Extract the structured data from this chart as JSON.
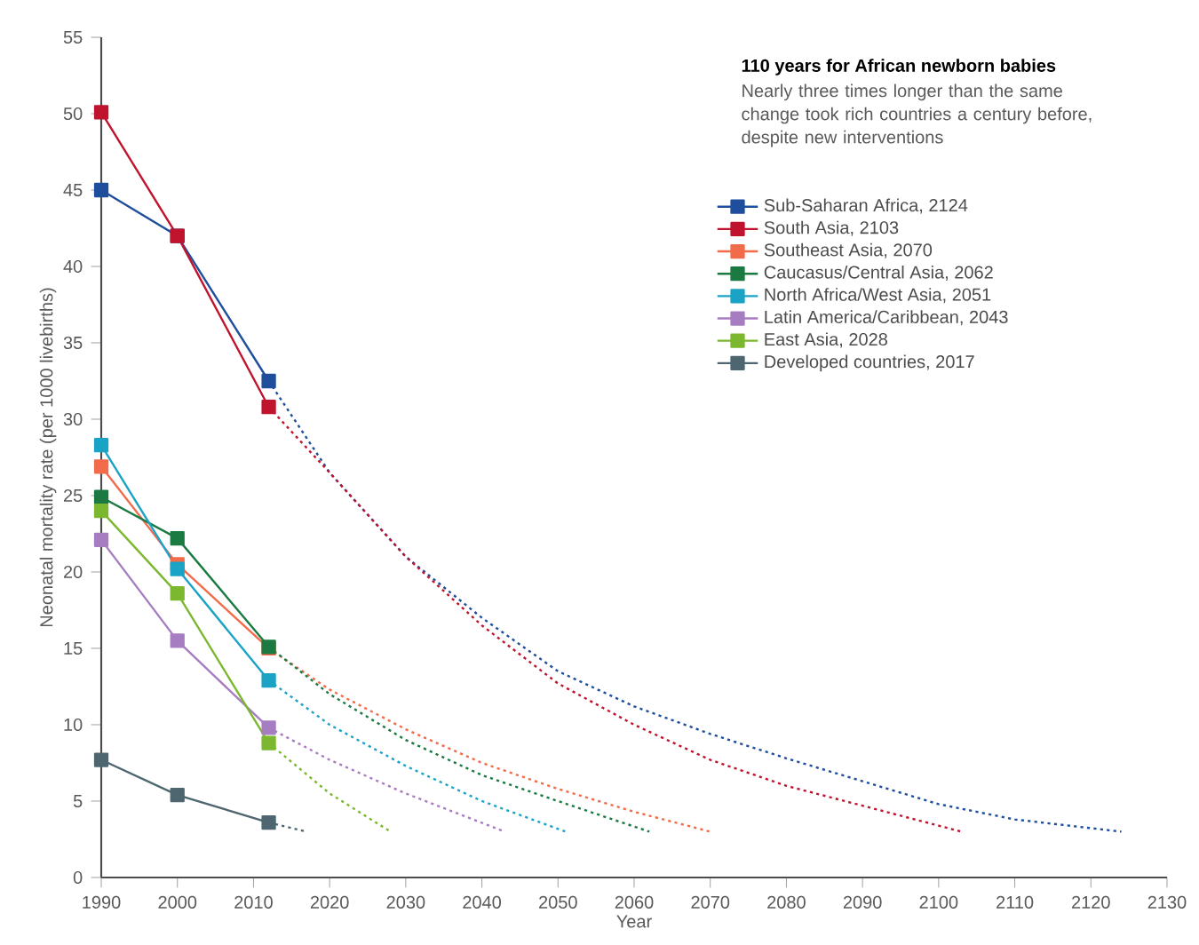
{
  "chart_data": {
    "type": "line",
    "title": "110 years for African newborn babies",
    "subtitle": "Nearly three times longer than the same change took rich countries a century before, despite new interventions",
    "xlabel": "Year",
    "ylabel": "Neonatal mortality rate (per 1000 livebirths)",
    "xlim": [
      1990,
      2130
    ],
    "xticks": [
      1990,
      2000,
      2010,
      2020,
      2030,
      2040,
      2050,
      2060,
      2070,
      2080,
      2090,
      2100,
      2110,
      2120,
      2130
    ],
    "ylim": [
      0,
      55
    ],
    "yticks": [
      0,
      5,
      10,
      15,
      20,
      25,
      30,
      35,
      40,
      45,
      50,
      55
    ],
    "grid": false,
    "legend": "top right",
    "marker": "square",
    "line_style": "solid",
    "series": [
      {
        "name": "Sub-Saharan Africa, 2124",
        "color": "#1f4e9c",
        "x": [
          1990,
          2000,
          2012
        ],
        "values": [
          45,
          42,
          32.5
        ]
      },
      {
        "name": "South Asia, 2103",
        "color": "#c0132e",
        "x": [
          1990,
          2000,
          2012
        ],
        "values": [
          50.1,
          42,
          30.8
        ]
      },
      {
        "name": "Southeast Asia, 2070",
        "color": "#f26b4a",
        "x": [
          1990,
          2000,
          2012
        ],
        "values": [
          26.9,
          20.5,
          15
        ]
      },
      {
        "name": "Caucasus/Central Asia, 2062",
        "color": "#1a7a42",
        "x": [
          1990,
          2000,
          2012
        ],
        "values": [
          24.9,
          22.2,
          15.1
        ]
      },
      {
        "name": "North Africa/West Asia, 2051",
        "color": "#1ba3c6",
        "x": [
          1990,
          2000,
          2012
        ],
        "values": [
          28.3,
          20.2,
          12.9
        ]
      },
      {
        "name": "Latin America/Caribbean, 2043",
        "color": "#a77dc2",
        "x": [
          1990,
          2000,
          2012
        ],
        "values": [
          22.1,
          15.5,
          9.8
        ]
      },
      {
        "name": "East Asia, 2028",
        "color": "#7cb82f",
        "x": [
          1990,
          2000,
          2012
        ],
        "values": [
          24,
          18.6,
          8.8
        ]
      },
      {
        "name": "Developed countries, 2017",
        "color": "#4d6670",
        "x": [
          1990,
          2000,
          2012
        ],
        "values": [
          7.7,
          5.4,
          3.6
        ]
      },
      {
        "color": "#1f4e9c",
        "line_style": "dotted",
        "marker": "none",
        "x": [
          2012,
          2020,
          2030,
          2040,
          2050,
          2060,
          2070,
          2080,
          2090,
          2100,
          2110,
          2124
        ],
        "values": [
          32.5,
          26.5,
          21,
          17,
          13.5,
          11.2,
          9.4,
          7.8,
          6.3,
          4.8,
          3.8,
          3
        ]
      },
      {
        "color": "#c0132e",
        "line_style": "dotted",
        "marker": "none",
        "x": [
          2012,
          2020,
          2030,
          2040,
          2050,
          2060,
          2070,
          2080,
          2090,
          2103
        ],
        "values": [
          30.8,
          26.5,
          21,
          16.5,
          12.7,
          10,
          7.7,
          6,
          4.7,
          3
        ]
      },
      {
        "color": "#f26b4a",
        "line_style": "dotted",
        "marker": "none",
        "x": [
          2012,
          2020,
          2030,
          2040,
          2050,
          2060,
          2070
        ],
        "values": [
          15,
          12.3,
          9.7,
          7.5,
          5.8,
          4.3,
          3
        ]
      },
      {
        "color": "#1a7a42",
        "line_style": "dotted",
        "marker": "none",
        "x": [
          2012,
          2020,
          2030,
          2040,
          2050,
          2062
        ],
        "values": [
          15.1,
          12,
          9,
          6.7,
          5,
          3
        ]
      },
      {
        "color": "#1ba3c6",
        "line_style": "dotted",
        "marker": "none",
        "x": [
          2012,
          2020,
          2030,
          2040,
          2051
        ],
        "values": [
          12.9,
          10,
          7.3,
          5,
          3
        ]
      },
      {
        "color": "#a77dc2",
        "line_style": "dotted",
        "marker": "none",
        "x": [
          2012,
          2020,
          2030,
          2043
        ],
        "values": [
          9.8,
          7.7,
          5.5,
          3
        ]
      },
      {
        "color": "#7cb82f",
        "line_style": "dotted",
        "marker": "none",
        "x": [
          2012,
          2020,
          2028
        ],
        "values": [
          8.8,
          5.5,
          3
        ]
      },
      {
        "color": "#4d6670",
        "line_style": "dotted",
        "marker": "none",
        "x": [
          2012,
          2017
        ],
        "values": [
          3.6,
          3
        ]
      }
    ]
  }
}
